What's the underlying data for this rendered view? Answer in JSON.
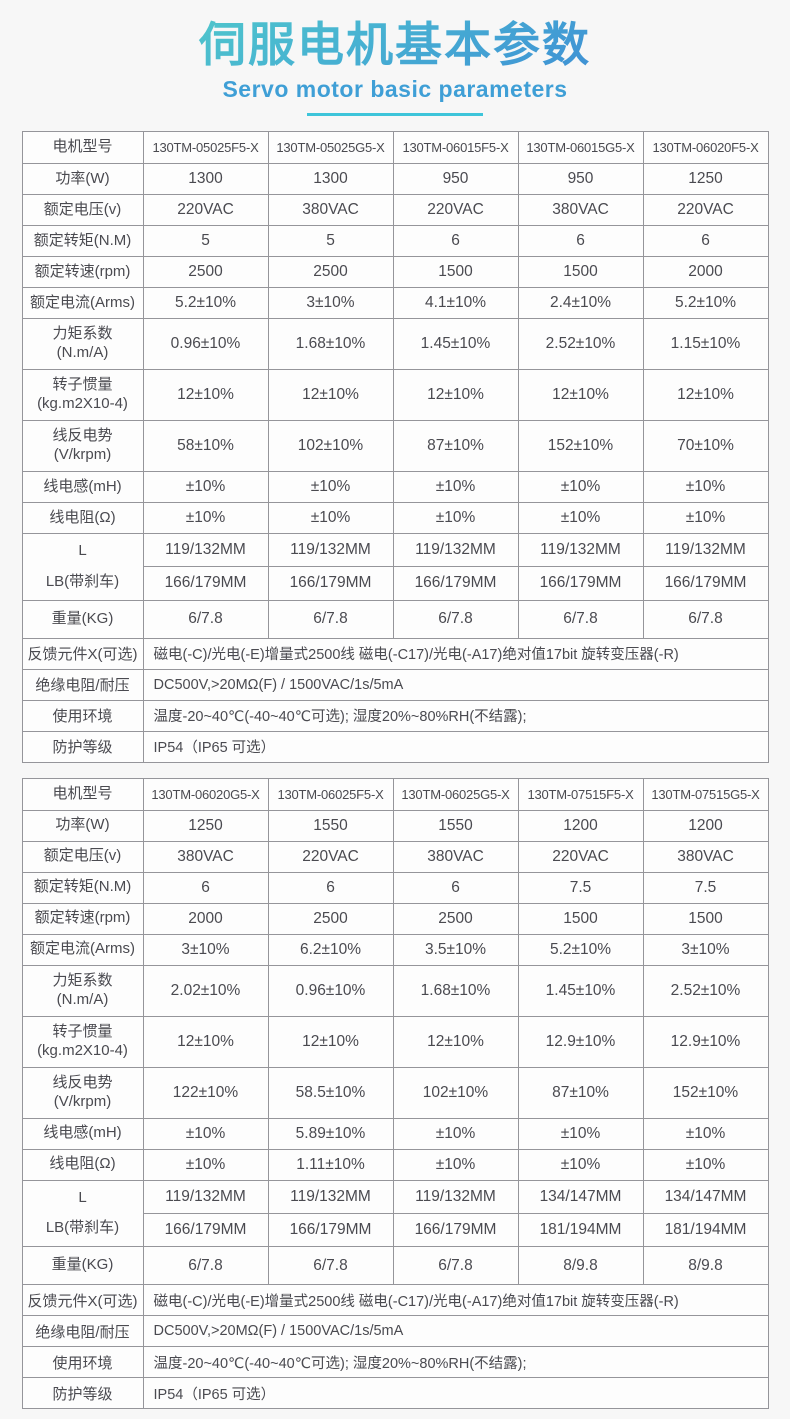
{
  "header": {
    "title": "伺服电机基本参数",
    "subtitle": "Servo motor basic parameters"
  },
  "colors": {
    "title_gradient_start": "#55d3c7",
    "title_gradient_end": "#3b7fd6",
    "subtitle_text": "#3f9fd6",
    "underline": "#3ec5da",
    "table_border": "#95959a",
    "body_text": "#4a4a50",
    "page_background": "#f7f7f7"
  },
  "tables": [
    {
      "rows": [
        {
          "kind": "models",
          "label": "电机型号",
          "values": [
            "130TM-05025F5-X",
            "130TM-05025G5-X",
            "130TM-06015F5-X",
            "130TM-06015G5-X",
            "130TM-06020F5-X"
          ]
        },
        {
          "kind": "std",
          "label": "功率(W)",
          "values": [
            "1300",
            "1300",
            "950",
            "950",
            "1250"
          ]
        },
        {
          "kind": "std",
          "label": "额定电压(v)",
          "values": [
            "220VAC",
            "380VAC",
            "220VAC",
            "380VAC",
            "220VAC"
          ]
        },
        {
          "kind": "std",
          "label": "额定转矩(N.M)",
          "values": [
            "5",
            "5",
            "6",
            "6",
            "6"
          ]
        },
        {
          "kind": "std",
          "label": "额定转速(rpm)",
          "values": [
            "2500",
            "2500",
            "1500",
            "1500",
            "2000"
          ]
        },
        {
          "kind": "std",
          "label": "额定电流(Arms)",
          "values": [
            "5.2±10%",
            "3±10%",
            "4.1±10%",
            "2.4±10%",
            "5.2±10%"
          ]
        },
        {
          "kind": "tall",
          "label": "力矩系数\n(N.m/A)",
          "values": [
            "0.96±10%",
            "1.68±10%",
            "1.45±10%",
            "2.52±10%",
            "1.15±10%"
          ]
        },
        {
          "kind": "tall",
          "label": "转子惯量\n(kg.m2X10-4)",
          "values": [
            "12±10%",
            "12±10%",
            "12±10%",
            "12±10%",
            "12±10%"
          ]
        },
        {
          "kind": "tall",
          "label": "线反电势\n(V/krpm)",
          "values": [
            "58±10%",
            "102±10%",
            "87±10%",
            "152±10%",
            "70±10%"
          ]
        },
        {
          "kind": "std",
          "label": "线电感(mH)",
          "values": [
            "±10%",
            "±10%",
            "±10%",
            "±10%",
            "±10%"
          ]
        },
        {
          "kind": "std",
          "label": "线电阻(Ω)",
          "values": [
            "±10%",
            "±10%",
            "±10%",
            "±10%",
            "±10%"
          ]
        },
        {
          "kind": "double",
          "labels": [
            "L",
            "LB(带刹车)"
          ],
          "rows": [
            [
              "119/132MM",
              "119/132MM",
              "119/132MM",
              "119/132MM",
              "119/132MM"
            ],
            [
              "166/179MM",
              "166/179MM",
              "166/179MM",
              "166/179MM",
              "166/179MM"
            ]
          ]
        },
        {
          "kind": "weight",
          "label": "重量(KG)",
          "values": [
            "6/7.8",
            "6/7.8",
            "6/7.8",
            "6/7.8",
            "6/7.8"
          ]
        },
        {
          "kind": "info",
          "label": "反馈元件X(可选)",
          "value": "磁电(-C)/光电(-E)增量式2500线  磁电(-C17)/光电(-A17)绝对值17bit  旋转变压器(-R)"
        },
        {
          "kind": "info",
          "label": "绝缘电阻/耐压",
          "value": "DC500V,>20MΩ(F) / 1500VAC/1s/5mA"
        },
        {
          "kind": "info",
          "label": "使用环境",
          "value": "温度-20~40℃(-40~40℃可选); 湿度20%~80%RH(不结露);"
        },
        {
          "kind": "info",
          "label": "防护等级",
          "value": "IP54（IP65 可选）"
        }
      ]
    },
    {
      "rows": [
        {
          "kind": "models",
          "label": "电机型号",
          "values": [
            "130TM-06020G5-X",
            "130TM-06025F5-X",
            "130TM-06025G5-X",
            "130TM-07515F5-X",
            "130TM-07515G5-X"
          ]
        },
        {
          "kind": "std",
          "label": "功率(W)",
          "values": [
            "1250",
            "1550",
            "1550",
            "1200",
            "1200"
          ]
        },
        {
          "kind": "std",
          "label": "额定电压(v)",
          "values": [
            "380VAC",
            "220VAC",
            "380VAC",
            "220VAC",
            "380VAC"
          ]
        },
        {
          "kind": "std",
          "label": "额定转矩(N.M)",
          "values": [
            "6",
            "6",
            "6",
            "7.5",
            "7.5"
          ]
        },
        {
          "kind": "std",
          "label": "额定转速(rpm)",
          "values": [
            "2000",
            "2500",
            "2500",
            "1500",
            "1500"
          ]
        },
        {
          "kind": "std",
          "label": "额定电流(Arms)",
          "values": [
            "3±10%",
            "6.2±10%",
            "3.5±10%",
            "5.2±10%",
            "3±10%"
          ]
        },
        {
          "kind": "tall",
          "label": "力矩系数\n(N.m/A)",
          "values": [
            "2.02±10%",
            "0.96±10%",
            "1.68±10%",
            "1.45±10%",
            "2.52±10%"
          ]
        },
        {
          "kind": "tall",
          "label": "转子惯量\n(kg.m2X10-4)",
          "values": [
            "12±10%",
            "12±10%",
            "12±10%",
            "12.9±10%",
            "12.9±10%"
          ]
        },
        {
          "kind": "tall",
          "label": "线反电势\n(V/krpm)",
          "values": [
            "122±10%",
            "58.5±10%",
            "102±10%",
            "87±10%",
            "152±10%"
          ]
        },
        {
          "kind": "std",
          "label": "线电感(mH)",
          "values": [
            "±10%",
            "5.89±10%",
            "±10%",
            "±10%",
            "±10%"
          ]
        },
        {
          "kind": "std",
          "label": "线电阻(Ω)",
          "values": [
            "±10%",
            "1.11±10%",
            "±10%",
            "±10%",
            "±10%"
          ]
        },
        {
          "kind": "double",
          "labels": [
            "L",
            "LB(带刹车)"
          ],
          "rows": [
            [
              "119/132MM",
              "119/132MM",
              "119/132MM",
              "134/147MM",
              "134/147MM"
            ],
            [
              "166/179MM",
              "166/179MM",
              "166/179MM",
              "181/194MM",
              "181/194MM"
            ]
          ]
        },
        {
          "kind": "weight",
          "label": "重量(KG)",
          "values": [
            "6/7.8",
            "6/7.8",
            "6/7.8",
            "8/9.8",
            "8/9.8"
          ]
        },
        {
          "kind": "info",
          "label": "反馈元件X(可选)",
          "value": "磁电(-C)/光电(-E)增量式2500线  磁电(-C17)/光电(-A17)绝对值17bit  旋转变压器(-R)"
        },
        {
          "kind": "info",
          "label": "绝缘电阻/耐压",
          "value": "DC500V,>20MΩ(F) / 1500VAC/1s/5mA"
        },
        {
          "kind": "info",
          "label": "使用环境",
          "value": "温度-20~40℃(-40~40℃可选); 湿度20%~80%RH(不结露);"
        },
        {
          "kind": "info",
          "label": "防护等级",
          "value": "IP54（IP65 可选）"
        }
      ]
    }
  ]
}
